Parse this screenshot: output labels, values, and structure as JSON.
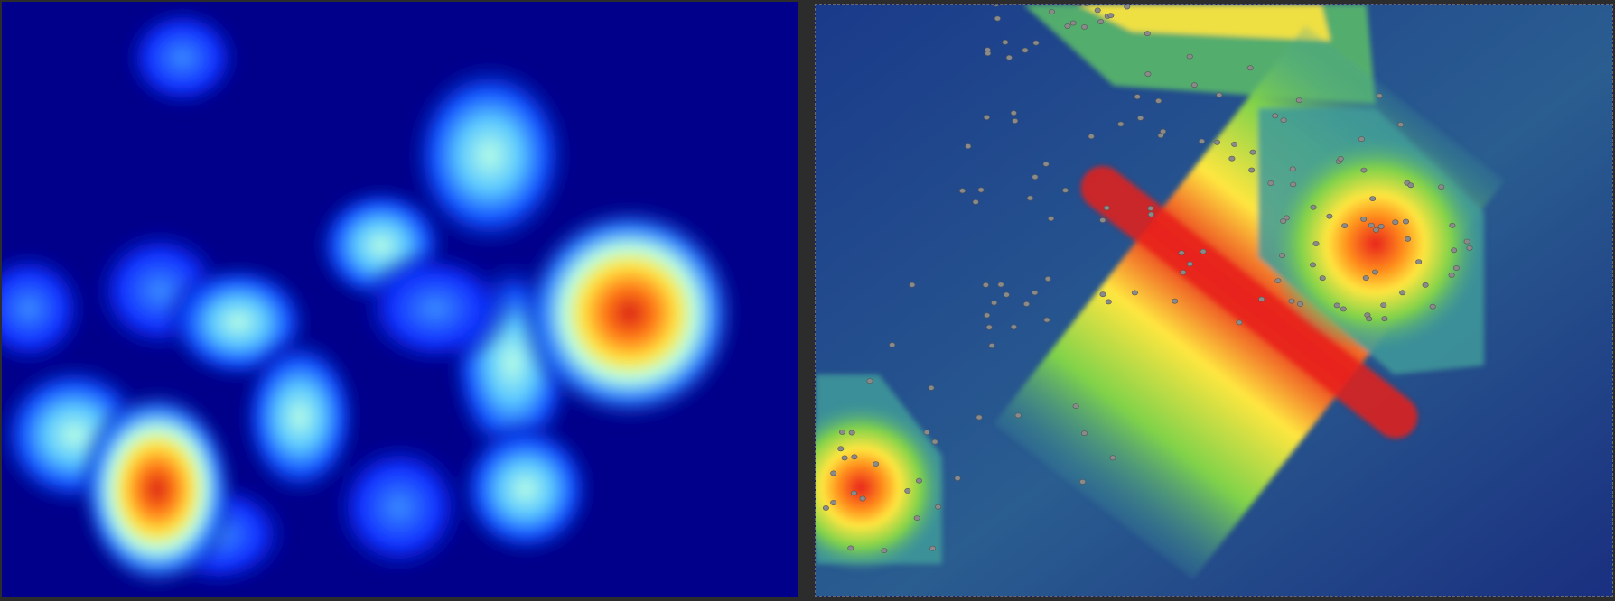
{
  "panels": [
    {
      "id": "density-heatmap",
      "kind": "blob density heatmap",
      "colormap": [
        "#00008a",
        "#0a1cff",
        "#2a7dff",
        "#a8ffe8",
        "#ffff40",
        "#ff8a1a",
        "#e8221a"
      ]
    },
    {
      "id": "overlay-heatmap",
      "kind": "heatmap overlay with point markers",
      "colormap": [
        "#14287a",
        "#2e5d9a",
        "#3f9a9a",
        "#7fd24a",
        "#ffff40",
        "#ff8a1a",
        "#e8221a"
      ]
    }
  ],
  "colors": {
    "separator": "#2c2c2c",
    "left_background": "#00008a",
    "right_background": "#14287a",
    "marker": "#8a8a8a"
  }
}
